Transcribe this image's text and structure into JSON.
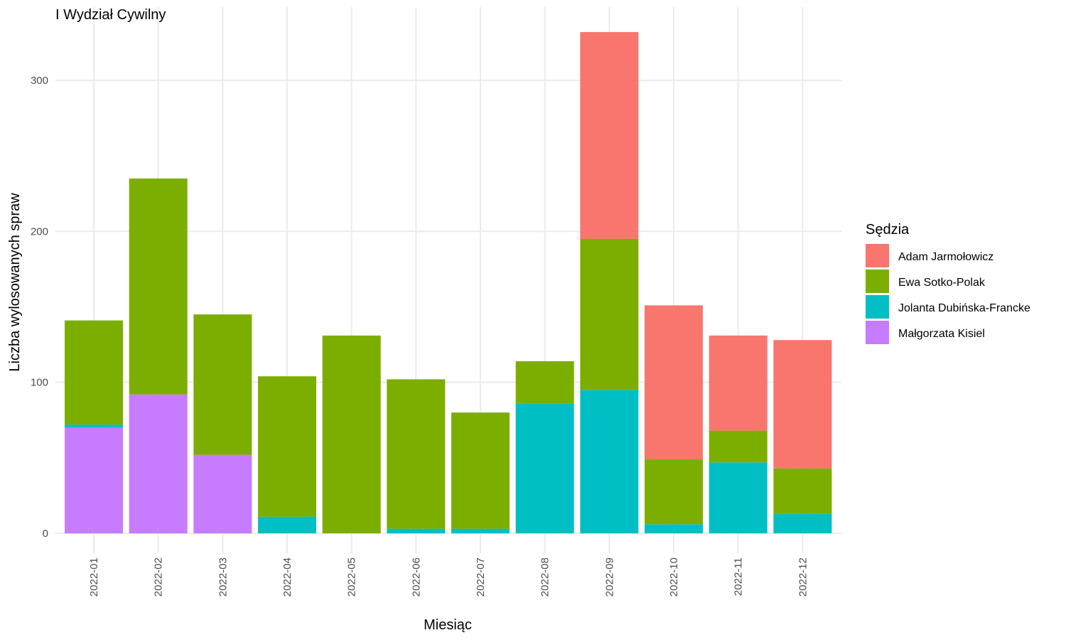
{
  "chart_data": {
    "type": "bar",
    "stacked": true,
    "title": "I Wydział Cywilny",
    "xlabel": "Miesiąc",
    "ylabel": "Liczba wylosowanych spraw",
    "ylim": [
      0,
      340
    ],
    "yticks": [
      0,
      100,
      200,
      300
    ],
    "grid": true,
    "legend_title": "Sędzia",
    "legend_position": "right",
    "categories": [
      "2022-01",
      "2022-02",
      "2022-03",
      "2022-04",
      "2022-05",
      "2022-06",
      "2022-07",
      "2022-08",
      "2022-09",
      "2022-10",
      "2022-11",
      "2022-12"
    ],
    "series": [
      {
        "name": "Adam Jarmołowicz",
        "color": "#F8766D",
        "values": [
          0,
          0,
          0,
          0,
          0,
          0,
          0,
          0,
          137,
          102,
          63,
          85
        ]
      },
      {
        "name": "Ewa Sotko-Polak",
        "color": "#7CAE00",
        "values": [
          69,
          143,
          93,
          93,
          131,
          99,
          77,
          28,
          100,
          43,
          21,
          30
        ]
      },
      {
        "name": "Jolanta Dubińska-Francke",
        "color": "#00BFC4",
        "values": [
          2,
          0,
          0,
          11,
          0,
          3,
          3,
          86,
          95,
          6,
          47,
          13
        ]
      },
      {
        "name": "Małgorzata Kisiel",
        "color": "#C77CFF",
        "values": [
          70,
          92,
          52,
          0,
          0,
          0,
          0,
          0,
          0,
          0,
          0,
          0
        ]
      }
    ]
  }
}
